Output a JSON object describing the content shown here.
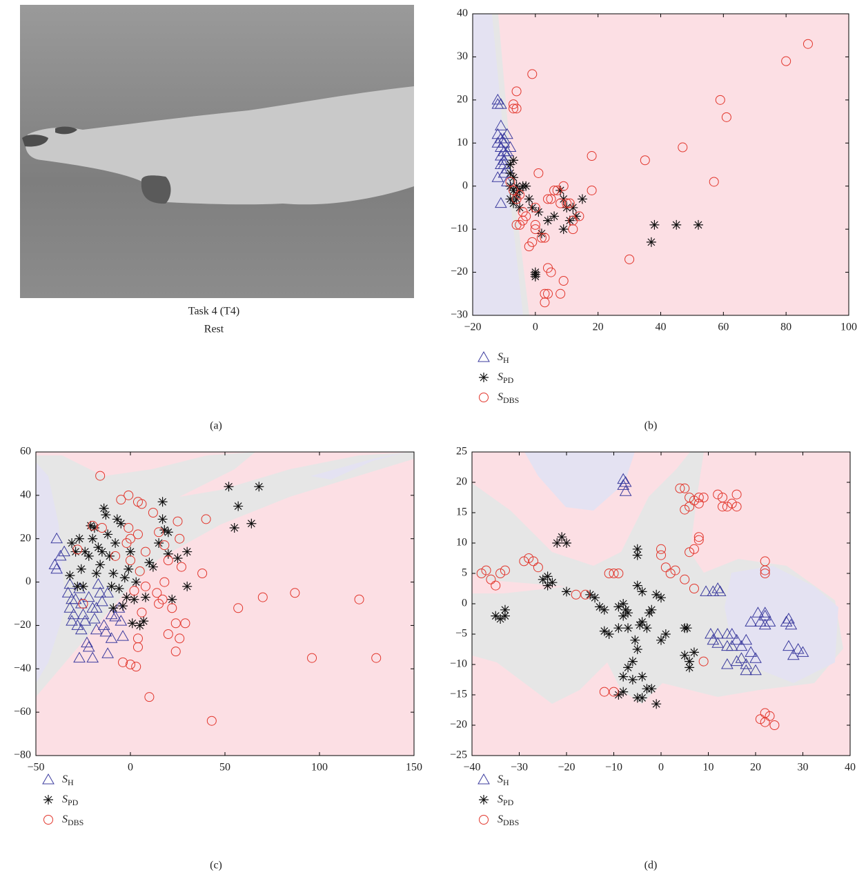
{
  "photo": {
    "caption": [
      "Task 4 (T4)",
      "Rest"
    ],
    "label": "(a)"
  },
  "chart_data": [
    {
      "type": "scatter",
      "label": "(b)",
      "xlim": [
        -20,
        100
      ],
      "ylim": [
        -30,
        40
      ],
      "xticks": [
        {
          "value": -20,
          "label": "−20"
        },
        0,
        20,
        40,
        60,
        80,
        100
      ],
      "yticks": [
        {
          "value": -30,
          "label": "−30"
        },
        {
          "value": -20,
          "label": "−20"
        },
        {
          "value": -10,
          "label": "−10"
        },
        0,
        10,
        20,
        30,
        40
      ],
      "series": [
        {
          "name": "S",
          "subscript": "H",
          "color": "#3b3b9e",
          "marker": "triangle",
          "x": [
            -12,
            -11,
            -12,
            -11,
            -12,
            -11,
            -10,
            -11,
            -10,
            -9,
            -10,
            -11,
            -12,
            -9,
            -10,
            -11,
            -9,
            -10,
            -8,
            -9,
            -12,
            -10,
            -11,
            -9
          ],
          "values": [
            20,
            19,
            19,
            14,
            12,
            11,
            10,
            9,
            8,
            7,
            6,
            5,
            2,
            4,
            3,
            -4,
            12,
            11,
            9,
            1,
            10,
            5,
            7,
            8
          ]
        },
        {
          "name": "S",
          "subscript": "PD",
          "color": "#111111",
          "marker": "asterisk",
          "x": [
            -8,
            -7,
            -8,
            -7,
            -6,
            -8,
            -7,
            -6,
            -8,
            -7,
            -5,
            -4,
            -3,
            -2,
            -1,
            1,
            2,
            4,
            6,
            8,
            9,
            10,
            9,
            11,
            12,
            13,
            15,
            0,
            0,
            0,
            37,
            38,
            45,
            52,
            -5,
            -6
          ],
          "values": [
            5,
            6,
            3,
            2,
            0,
            0,
            -1,
            -2,
            -3,
            -4,
            -1,
            0,
            0,
            -3,
            -5,
            -6,
            -11,
            -8,
            -7,
            -1,
            -3,
            -5,
            -10,
            -8,
            -5,
            -7,
            -3,
            -20,
            -21,
            -20.5,
            -13,
            -9,
            -9,
            -9,
            -5,
            -3
          ]
        },
        {
          "name": "S",
          "subscript": "DBS",
          "color": "#e2352b",
          "marker": "circle",
          "x": [
            -6,
            -1,
            -7,
            -7,
            -6,
            -8,
            -7,
            -6,
            -5,
            -4,
            -6,
            -5,
            -4,
            -3,
            -2,
            -1,
            0,
            0,
            0,
            1,
            2,
            3,
            4,
            5,
            6,
            7,
            8,
            9,
            10,
            11,
            12,
            12,
            14,
            18,
            18,
            4,
            5,
            4,
            3,
            3,
            8,
            9,
            30,
            35,
            47,
            57,
            59,
            61,
            80,
            87
          ],
          "values": [
            22,
            26,
            19,
            18,
            18,
            1,
            -1,
            -3,
            -2,
            -6,
            -9,
            -9,
            -8,
            -7,
            -14,
            -13,
            -9,
            -10,
            -5,
            3,
            -12,
            -12,
            -3,
            -3,
            -1,
            -1,
            -4,
            0,
            -4,
            -4,
            -8,
            -10,
            -7,
            7,
            -1,
            -19,
            -20,
            -25,
            -25,
            -27,
            -25,
            -22,
            -17,
            6,
            9,
            1,
            20,
            16,
            29,
            33
          ]
        }
      ]
    },
    {
      "type": "scatter",
      "label": "(c)",
      "xlim": [
        -50,
        150
      ],
      "ylim": [
        -80,
        60
      ],
      "xticks": [
        {
          "value": -50,
          "label": "−50"
        },
        0,
        50,
        100,
        150
      ],
      "yticks": [
        {
          "value": -80,
          "label": "−80"
        },
        {
          "value": -60,
          "label": "−60"
        },
        {
          "value": -40,
          "label": "−40"
        },
        {
          "value": -20,
          "label": "−20"
        },
        0,
        20,
        40,
        60
      ],
      "series": [
        {
          "name": "S",
          "subscript": "H",
          "color": "#3b3b9e",
          "marker": "triangle",
          "x": [
            -39,
            -40,
            -39,
            -37,
            -35,
            -32,
            -33,
            -31,
            -32,
            -30,
            -31,
            -28,
            -27,
            -26,
            -25,
            -24,
            -22,
            -20,
            -19,
            -18,
            -17,
            -16,
            -15,
            -14,
            -13,
            -12,
            -10,
            -8,
            -6,
            -5,
            -4,
            -23,
            -27,
            -20,
            -22,
            -12,
            -29,
            -26,
            -18,
            -10
          ],
          "values": [
            20,
            8,
            6,
            12,
            14,
            -1,
            -5,
            -8,
            -12,
            -15,
            -18,
            -20,
            -3,
            -10,
            -15,
            -18,
            -7,
            -12,
            -17,
            -22,
            -1,
            -5,
            -9,
            -20,
            -23,
            -33,
            -26,
            -16,
            -12,
            -18,
            -25,
            -28,
            -35,
            -35,
            -30,
            -5,
            -8,
            -22,
            -12,
            -15
          ]
        },
        {
          "name": "S",
          "subscript": "PD",
          "color": "#111111",
          "marker": "asterisk",
          "x": [
            -32,
            -31,
            -29,
            -27,
            -28,
            -26,
            -24,
            -22,
            -21,
            -20,
            -19,
            -18,
            -17,
            -16,
            -15,
            -14,
            -13,
            -12,
            -11,
            -10,
            -9,
            -8,
            -7,
            -6,
            -5,
            -4,
            -3,
            -2,
            -1,
            0,
            1,
            2,
            3,
            5,
            7,
            8,
            10,
            12,
            15,
            17,
            17,
            18,
            20,
            20,
            22,
            25,
            30,
            30,
            52,
            55,
            57,
            64,
            68,
            -25,
            -9
          ],
          "values": [
            3,
            18,
            14,
            20,
            -2,
            6,
            14,
            12,
            26,
            20,
            25,
            4,
            16,
            8,
            14,
            34,
            31,
            22,
            12,
            -2,
            4,
            18,
            29,
            -3,
            27,
            -11,
            2,
            -7,
            6,
            14,
            -19,
            -8,
            0,
            -20,
            -18,
            -7,
            9,
            7,
            18,
            37,
            29,
            24,
            13,
            23,
            -8,
            11,
            14,
            -2,
            44,
            25,
            35,
            27,
            44,
            -2,
            -12
          ]
        },
        {
          "name": "S",
          "subscript": "DBS",
          "color": "#e2352b",
          "marker": "circle",
          "x": [
            -16,
            -5,
            -1,
            4,
            6,
            -20,
            -15,
            -1,
            0,
            4,
            8,
            12,
            15,
            18,
            20,
            25,
            26,
            27,
            -25,
            -28,
            -8,
            -2,
            0,
            2,
            5,
            6,
            8,
            14,
            15,
            17,
            18,
            20,
            22,
            24,
            24,
            26,
            29,
            38,
            40,
            57,
            70,
            87,
            96,
            121,
            130,
            43,
            10,
            -4,
            0,
            3,
            4,
            4
          ],
          "values": [
            49,
            38,
            40,
            37,
            36,
            26,
            25,
            25,
            20,
            22,
            14,
            32,
            23,
            17,
            10,
            28,
            20,
            7,
            -10,
            15,
            12,
            18,
            10,
            -4,
            5,
            -14,
            -2,
            -5,
            -10,
            -8,
            0,
            -24,
            -12,
            -19,
            -32,
            -26,
            -19,
            4,
            29,
            -12,
            -7,
            -5,
            -35,
            -8,
            -35,
            -64,
            -53,
            -37,
            -38,
            -39,
            -26,
            -30
          ]
        }
      ]
    },
    {
      "type": "scatter",
      "label": "(d)",
      "xlim": [
        -40,
        40
      ],
      "ylim": [
        -25,
        25
      ],
      "xticks": [
        {
          "value": -40,
          "label": "−40"
        },
        {
          "value": -30,
          "label": "−30"
        },
        {
          "value": -20,
          "label": "−20"
        },
        {
          "value": -10,
          "label": "−10"
        },
        0,
        10,
        20,
        30,
        40
      ],
      "yticks": [
        {
          "value": -25,
          "label": "−25"
        },
        {
          "value": -20,
          "label": "−20"
        },
        {
          "value": -15,
          "label": "−15"
        },
        {
          "value": -10,
          "label": "−10"
        },
        {
          "value": -5,
          "label": "−5"
        },
        0,
        5,
        10,
        15,
        20,
        25
      ],
      "series": [
        {
          "name": "S",
          "subscript": "H",
          "color": "#3b3b9e",
          "marker": "triangle",
          "x": [
            -8,
            -7.5,
            -8,
            -7.5,
            9.5,
            11,
            12,
            12.5,
            10.5,
            11,
            12,
            12,
            14,
            15,
            14,
            16,
            15,
            14,
            17,
            18,
            19,
            17,
            18,
            20,
            20,
            19,
            20.5,
            21,
            22,
            22,
            23,
            22,
            26.5,
            27,
            27.5,
            27,
            28,
            29,
            30,
            16,
            18
          ],
          "values": [
            20.5,
            20,
            19.5,
            18.5,
            2,
            2,
            2.5,
            2,
            -5,
            -6,
            -5,
            -6.5,
            -5,
            -5,
            -7,
            -6,
            -7,
            -10,
            -7,
            -6,
            -8,
            -9,
            -10,
            -9,
            -11,
            -3,
            -1.5,
            -3,
            -2,
            -3.5,
            -3,
            -1.5,
            -3,
            -2.5,
            -3.5,
            -7,
            -8.5,
            -7.5,
            -8,
            -9.5,
            -11
          ]
        },
        {
          "name": "S",
          "subscript": "PD",
          "color": "#111111",
          "marker": "asterisk",
          "x": [
            -35,
            -34,
            -33,
            -33,
            -25,
            -24,
            -23,
            -24,
            -22,
            -21,
            -20,
            -20,
            -15,
            -14,
            -13,
            -12,
            -12,
            -11,
            -9,
            -8,
            -8,
            -7,
            -7,
            -5,
            -5,
            -5,
            -4,
            -4,
            -3,
            -2,
            -1,
            0,
            0,
            1,
            -5,
            -6,
            -7,
            -8,
            -6,
            -4,
            -3,
            -2,
            -1,
            -4,
            -5,
            -8,
            -9,
            5,
            5,
            6,
            6,
            7,
            -9,
            -7.5,
            -2.5,
            -5.5,
            -4.5,
            5.5
          ],
          "values": [
            -2,
            -2.5,
            -1,
            -2,
            4,
            4.5,
            3.5,
            3,
            10,
            11,
            10,
            2,
            1.5,
            1,
            -0.5,
            -1,
            -4.5,
            -5,
            -0.5,
            0,
            -2,
            -1.5,
            -4,
            9,
            8,
            3,
            2,
            -3,
            -4,
            -1,
            1.5,
            1,
            -6,
            -5,
            -7.5,
            -9.5,
            -10.5,
            -12,
            -12.5,
            -12,
            -14,
            -14,
            -16.5,
            -15.5,
            -15.5,
            -14.5,
            -15,
            -4,
            -8.5,
            -9.5,
            -10.5,
            -8,
            -4,
            -1,
            -1.5,
            -6,
            -3.5,
            -4
          ]
        },
        {
          "name": "S",
          "subscript": "DBS",
          "color": "#e2352b",
          "marker": "circle",
          "x": [
            -38,
            -37,
            -36,
            -35,
            -34,
            -33,
            -29,
            -28,
            -27,
            -26,
            -18,
            -16,
            -11,
            -10,
            -9,
            0,
            0,
            1,
            2,
            3,
            4,
            5,
            5,
            6,
            6,
            7,
            8,
            8,
            9,
            6,
            7,
            8,
            8,
            12,
            13,
            13,
            14,
            15,
            16,
            16,
            5,
            7,
            9,
            -12,
            -10,
            21,
            22,
            22,
            23,
            24,
            22,
            22,
            22
          ],
          "values": [
            5,
            5.5,
            4,
            3,
            5,
            5.5,
            7,
            7.5,
            7,
            6,
            1.5,
            1.5,
            5,
            5,
            5,
            9,
            8,
            6,
            5,
            5.5,
            19,
            19,
            15.5,
            16,
            17.5,
            17,
            17.5,
            16.5,
            17.5,
            8.5,
            9,
            11,
            10.5,
            18,
            16,
            17.5,
            16,
            16.5,
            16,
            18,
            4,
            2.5,
            -9.5,
            -14.5,
            -14.5,
            -19,
            -19.5,
            -18,
            -18.5,
            -20,
            7,
            5.5,
            5
          ]
        }
      ]
    }
  ]
}
